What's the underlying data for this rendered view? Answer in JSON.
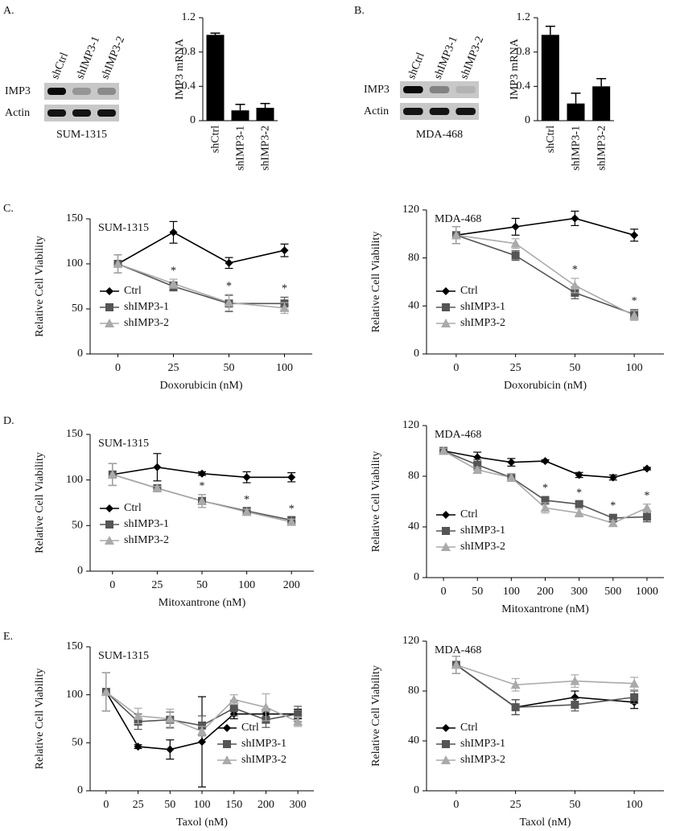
{
  "panels": [
    "A.",
    "B.",
    "C.",
    "D.",
    "E."
  ],
  "blots": [
    {
      "lanes": [
        "shCtrl",
        "shIMP3-1",
        "shIMP3-2"
      ],
      "rows": [
        "IMP3",
        "Actin"
      ],
      "cell_line": "SUM-1315"
    },
    {
      "lanes": [
        "shCtrl",
        "shIMP3-1",
        "shIMP3-2"
      ],
      "rows": [
        "IMP3",
        "Actin"
      ],
      "cell_line": "MDA-468"
    }
  ],
  "chart_data": [
    {
      "type": "bar",
      "y_label": "IMP3 mRNA",
      "categories": [
        "shCtrl",
        "shIMP3-1",
        "shIMP3-2"
      ],
      "values": [
        1.0,
        0.12,
        0.15
      ],
      "errors": [
        0.02,
        0.07,
        0.05
      ],
      "color": "#000000",
      "ylim": [
        0,
        1.2
      ],
      "yticks": [
        0,
        0.4,
        0.8,
        1.2
      ]
    },
    {
      "type": "bar",
      "y_label": "IMP3 mRNA",
      "categories": [
        "shCtrl",
        "shIMP3-1",
        "shIMP3-2"
      ],
      "values": [
        1.0,
        0.2,
        0.4
      ],
      "errors": [
        0.1,
        0.12,
        0.09
      ],
      "color": "#000000",
      "ylim": [
        0,
        1.2
      ],
      "yticks": [
        0,
        0.4,
        0.8,
        1.2
      ]
    },
    {
      "type": "line",
      "annotation": "SUM-1315",
      "x_label": "Doxorubicin (nM)",
      "y_label": "Relative Cell Viability",
      "categories": [
        "0",
        "25",
        "50",
        "100"
      ],
      "ylim": [
        0,
        150
      ],
      "yticks": [
        0,
        50,
        100,
        150
      ],
      "legend": "lower left",
      "series": [
        {
          "name": "Ctrl",
          "color": "#000000",
          "marker": "diamond",
          "values": [
            100,
            135,
            101,
            115
          ],
          "errors": [
            10,
            12,
            6,
            7
          ]
        },
        {
          "name": "shIMP3-1",
          "color": "#555555",
          "marker": "square",
          "values": [
            100,
            75,
            56,
            56
          ],
          "errors": [
            10,
            5,
            9,
            7
          ]
        },
        {
          "name": "shIMP3-2",
          "color": "#aaaaaa",
          "marker": "triangle",
          "values": [
            100,
            78,
            57,
            51
          ],
          "errors": [
            10,
            5,
            9,
            6
          ]
        }
      ],
      "annotations": [
        {
          "text": "*",
          "category": "25"
        },
        {
          "text": "*",
          "category": "50"
        },
        {
          "text": "*",
          "category": "100"
        }
      ]
    },
    {
      "type": "line",
      "annotation": "MDA-468",
      "x_label": "Doxorubicin (nM)",
      "y_label": "Relative Cell Viability",
      "categories": [
        "0",
        "25",
        "50",
        "100"
      ],
      "ylim": [
        0,
        120
      ],
      "yticks": [
        0,
        40,
        80,
        120
      ],
      "legend": "lower left",
      "series": [
        {
          "name": "Ctrl",
          "color": "#000000",
          "marker": "diamond",
          "values": [
            99,
            106,
            113,
            99
          ],
          "errors": [
            7,
            7,
            6,
            5
          ]
        },
        {
          "name": "shIMP3-1",
          "color": "#555555",
          "marker": "square",
          "values": [
            99,
            82,
            51,
            33
          ],
          "errors": [
            7,
            4,
            5,
            4
          ]
        },
        {
          "name": "shIMP3-2",
          "color": "#aaaaaa",
          "marker": "triangle",
          "values": [
            99,
            92,
            57,
            32
          ],
          "errors": [
            7,
            4,
            6,
            4
          ]
        }
      ],
      "annotations": [
        {
          "text": "*",
          "category": "50"
        },
        {
          "text": "*",
          "category": "100"
        }
      ]
    },
    {
      "type": "line",
      "annotation": "SUM-1315",
      "x_label": "Mitoxantrone  (nM)",
      "y_label": "Relative Cell Viability",
      "categories": [
        "0",
        "25",
        "50",
        "100",
        "200"
      ],
      "ylim": [
        0,
        150
      ],
      "yticks": [
        0,
        50,
        100,
        150
      ],
      "legend": "lower left",
      "series": [
        {
          "name": "Ctrl",
          "color": "#000000",
          "marker": "diamond",
          "values": [
            106,
            114,
            107,
            103,
            103
          ],
          "errors": [
            12,
            15,
            2,
            6,
            5
          ]
        },
        {
          "name": "shIMP3-1",
          "color": "#555555",
          "marker": "square",
          "values": [
            106,
            91,
            77,
            66,
            56
          ],
          "errors": [
            12,
            2,
            7,
            3,
            3
          ]
        },
        {
          "name": "shIMP3-2",
          "color": "#aaaaaa",
          "marker": "triangle",
          "values": [
            106,
            91,
            77,
            65,
            54
          ],
          "errors": [
            12,
            2,
            7,
            3,
            3
          ]
        }
      ],
      "annotations": [
        {
          "text": "*",
          "category": "50"
        },
        {
          "text": "*",
          "category": "100"
        },
        {
          "text": "*",
          "category": "200"
        }
      ]
    },
    {
      "type": "line",
      "annotation": "MDA-468",
      "x_label": "Mitoxantrone  (nM)",
      "y_label": "Relative Cell Viability",
      "categories": [
        "0",
        "50",
        "100",
        "200",
        "300",
        "500",
        "1000"
      ],
      "ylim": [
        0,
        120
      ],
      "yticks": [
        0,
        40,
        80,
        120
      ],
      "legend": "lower left",
      "series": [
        {
          "name": "Ctrl",
          "color": "#000000",
          "marker": "diamond",
          "values": [
            100,
            95,
            91,
            92,
            81,
            79,
            86
          ],
          "errors": [
            2,
            4,
            3,
            1,
            2,
            2,
            1
          ]
        },
        {
          "name": "shIMP3-1",
          "color": "#555555",
          "marker": "square",
          "values": [
            100,
            89,
            79,
            61,
            58,
            47,
            48
          ],
          "errors": [
            2,
            4,
            3,
            3,
            2,
            3,
            4
          ]
        },
        {
          "name": "shIMP3-2",
          "color": "#aaaaaa",
          "marker": "triangle",
          "values": [
            100,
            85,
            79,
            55,
            51,
            43,
            55
          ],
          "errors": [
            2,
            2,
            3,
            4,
            3,
            2,
            3
          ]
        }
      ],
      "annotations": [
        {
          "text": "*",
          "category": "200"
        },
        {
          "text": "*",
          "category": "300"
        },
        {
          "text": "*",
          "category": "500"
        },
        {
          "text": "*",
          "category": "1000"
        }
      ]
    },
    {
      "type": "line",
      "annotation": "SUM-1315",
      "x_label": "Taxol (nM)",
      "y_label": "Relative Cell Viability",
      "categories": [
        "0",
        "25",
        "50",
        "100",
        "150",
        "200",
        "300"
      ],
      "ylim": [
        0,
        150
      ],
      "yticks": [
        0,
        50,
        100,
        150
      ],
      "legend": "lower right",
      "series": [
        {
          "name": "Ctrl",
          "color": "#000000",
          "marker": "diamond",
          "values": [
            103,
            46,
            43,
            51,
            80,
            80,
            80
          ],
          "errors": [
            20,
            2,
            10,
            47,
            5,
            5,
            5
          ]
        },
        {
          "name": "shIMP3-1",
          "color": "#555555",
          "marker": "square",
          "values": [
            103,
            72,
            74,
            68,
            86,
            74,
            80
          ],
          "errors": [
            20,
            8,
            8,
            10,
            8,
            8,
            8
          ]
        },
        {
          "name": "shIMP3-2",
          "color": "#aaaaaa",
          "marker": "triangle",
          "values": [
            103,
            78,
            75,
            62,
            95,
            87,
            72
          ],
          "errors": [
            20,
            8,
            10,
            5,
            5,
            14,
            5
          ]
        }
      ]
    },
    {
      "type": "line",
      "annotation": "MDA-468",
      "x_label": "Taxol (nM)",
      "y_label": "Relative Cell Viability",
      "categories": [
        "0",
        "25",
        "50",
        "100"
      ],
      "ylim": [
        0,
        120
      ],
      "yticks": [
        0,
        40,
        80,
        120
      ],
      "legend": "lower left",
      "series": [
        {
          "name": "Ctrl",
          "color": "#000000",
          "marker": "diamond",
          "values": [
            101,
            67,
            75,
            71
          ],
          "errors": [
            7,
            6,
            5,
            5
          ]
        },
        {
          "name": "shIMP3-1",
          "color": "#555555",
          "marker": "square",
          "values": [
            101,
            67,
            69,
            75
          ],
          "errors": [
            7,
            6,
            5,
            5
          ]
        },
        {
          "name": "shIMP3-2",
          "color": "#aaaaaa",
          "marker": "triangle",
          "values": [
            101,
            85,
            88,
            86
          ],
          "errors": [
            7,
            5,
            5,
            5
          ]
        }
      ]
    }
  ]
}
